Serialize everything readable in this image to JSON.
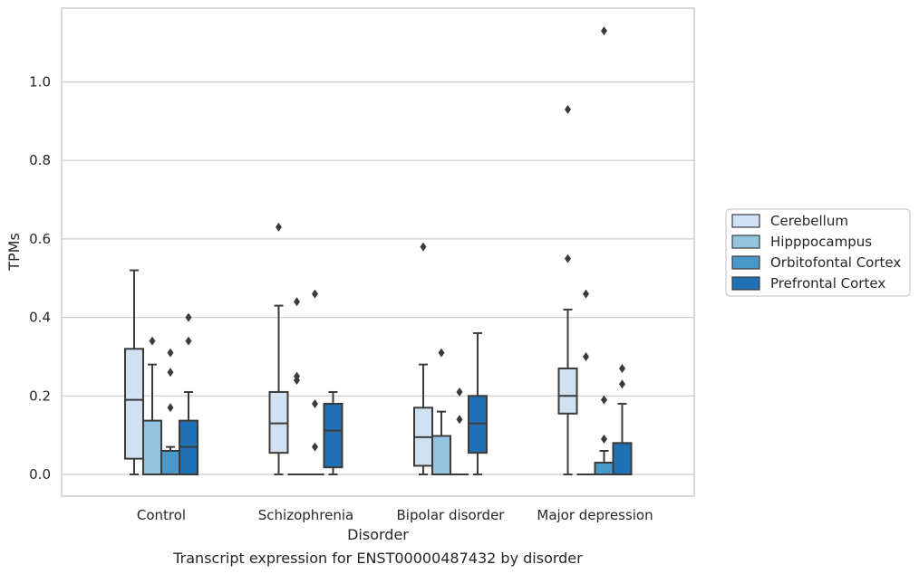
{
  "chart_data": {
    "type": "box",
    "caption": "Transcript expression for ENST00000487432 by disorder",
    "xlabel": "Disorder",
    "ylabel": "TPMs",
    "ylim": [
      -0.055,
      1.19
    ],
    "yticks": [
      0.0,
      0.2,
      0.4,
      0.6,
      0.8,
      1.0
    ],
    "grid": "horizontal",
    "legend_placement": "right",
    "categories": [
      "Control",
      "Schizophrenia",
      "Bipolar disorder",
      "Major depression"
    ],
    "series": [
      {
        "name": "Cerebellum",
        "color": "#d0e1f2",
        "boxes": [
          {
            "whislo": 0.0,
            "q1": 0.04,
            "med": 0.19,
            "q3": 0.32,
            "whishi": 0.52,
            "fliers": []
          },
          {
            "whislo": 0.0,
            "q1": 0.055,
            "med": 0.13,
            "q3": 0.21,
            "whishi": 0.43,
            "fliers": [
              0.63
            ]
          },
          {
            "whislo": 0.0,
            "q1": 0.022,
            "med": 0.095,
            "q3": 0.17,
            "whishi": 0.28,
            "fliers": [
              0.58
            ]
          },
          {
            "whislo": 0.0,
            "q1": 0.155,
            "med": 0.2,
            "q3": 0.27,
            "whishi": 0.42,
            "fliers": [
              0.55,
              0.93
            ]
          }
        ]
      },
      {
        "name": "Hipppocampus",
        "color": "#94c4df",
        "boxes": [
          {
            "whislo": 0.0,
            "q1": 0.0,
            "med": 0.0,
            "q3": 0.137,
            "whishi": 0.28,
            "fliers": [
              0.34
            ]
          },
          {
            "whislo": 0.0,
            "q1": 0.0,
            "med": 0.0,
            "q3": 0.0,
            "whishi": 0.0,
            "fliers": [
              0.24,
              0.25,
              0.44
            ]
          },
          {
            "whislo": 0.0,
            "q1": 0.0,
            "med": 0.0,
            "q3": 0.098,
            "whishi": 0.16,
            "fliers": [
              0.31
            ]
          },
          {
            "whislo": 0.0,
            "q1": 0.0,
            "med": 0.0,
            "q3": 0.0,
            "whishi": 0.0,
            "fliers": [
              0.3,
              0.46
            ]
          }
        ]
      },
      {
        "name": "Orbitofontal Cortex",
        "color": "#4a98c9",
        "boxes": [
          {
            "whislo": 0.0,
            "q1": 0.0,
            "med": 0.0,
            "q3": 0.06,
            "whishi": 0.07,
            "fliers": [
              0.17,
              0.26,
              0.31
            ]
          },
          {
            "whislo": 0.0,
            "q1": 0.0,
            "med": 0.0,
            "q3": 0.0,
            "whishi": 0.0,
            "fliers": [
              0.07,
              0.18,
              0.46
            ]
          },
          {
            "whislo": 0.0,
            "q1": 0.0,
            "med": 0.0,
            "q3": 0.0,
            "whishi": 0.0,
            "fliers": [
              0.14,
              0.21
            ]
          },
          {
            "whislo": 0.0,
            "q1": 0.0,
            "med": 0.0,
            "q3": 0.03,
            "whishi": 0.06,
            "fliers": [
              0.09,
              0.19,
              1.13
            ]
          }
        ]
      },
      {
        "name": "Prefrontal Cortex",
        "color": "#2070b4",
        "boxes": [
          {
            "whislo": 0.0,
            "q1": 0.0,
            "med": 0.07,
            "q3": 0.137,
            "whishi": 0.21,
            "fliers": [
              0.34,
              0.4
            ]
          },
          {
            "whislo": 0.0,
            "q1": 0.018,
            "med": 0.112,
            "q3": 0.18,
            "whishi": 0.21,
            "fliers": []
          },
          {
            "whislo": 0.0,
            "q1": 0.055,
            "med": 0.13,
            "q3": 0.2,
            "whishi": 0.36,
            "fliers": []
          },
          {
            "whislo": 0.0,
            "q1": 0.0,
            "med": 0.0,
            "q3": 0.08,
            "whishi": 0.18,
            "fliers": [
              0.23,
              0.27
            ]
          }
        ]
      }
    ]
  }
}
